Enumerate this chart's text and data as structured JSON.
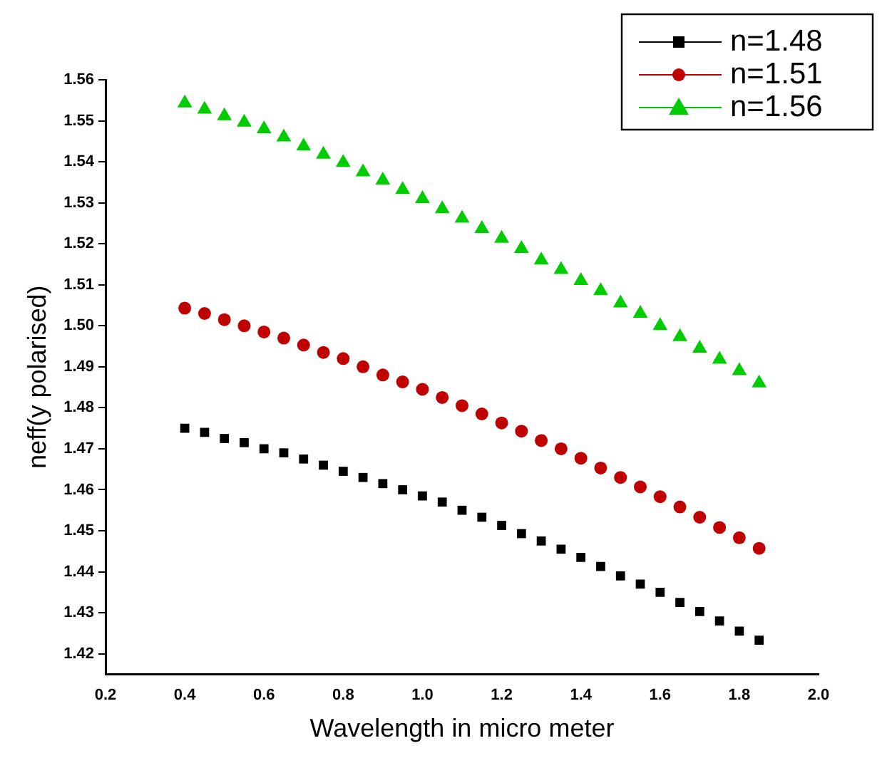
{
  "chart_data": {
    "type": "scatter",
    "xlabel": "Wavelength in micro meter",
    "ylabel": "neff(y polarised)",
    "x": [
      0.4,
      0.45,
      0.5,
      0.55,
      0.6,
      0.65,
      0.7,
      0.75,
      0.8,
      0.85,
      0.9,
      0.95,
      1.0,
      1.05,
      1.1,
      1.15,
      1.2,
      1.25,
      1.3,
      1.35,
      1.4,
      1.45,
      1.5,
      1.55,
      1.6,
      1.65,
      1.7,
      1.75,
      1.8,
      1.85
    ],
    "series": [
      {
        "name": "n=1.48",
        "color": "#000000",
        "marker": "square",
        "values": [
          1.475,
          1.474,
          1.4725,
          1.4715,
          1.47,
          1.469,
          1.4675,
          1.466,
          1.4645,
          1.463,
          1.4615,
          1.46,
          1.4585,
          1.457,
          1.455,
          1.4533,
          1.4513,
          1.4493,
          1.4475,
          1.4455,
          1.4435,
          1.4413,
          1.439,
          1.437,
          1.435,
          1.4325,
          1.4303,
          1.428,
          1.4255,
          1.4233
        ]
      },
      {
        "name": "n=1.51",
        "color": "#c00000",
        "marker": "circle",
        "values": [
          1.5043,
          1.503,
          1.5015,
          1.5,
          1.4985,
          1.497,
          1.4953,
          1.4935,
          1.492,
          1.49,
          1.488,
          1.4863,
          1.4845,
          1.4825,
          1.4805,
          1.4785,
          1.4763,
          1.4743,
          1.472,
          1.47,
          1.4677,
          1.4653,
          1.463,
          1.4607,
          1.4583,
          1.4558,
          1.4533,
          1.4508,
          1.4483,
          1.4457
        ]
      },
      {
        "name": "n=1.56",
        "color": "#00cc00",
        "marker": "triangle",
        "values": [
          1.5543,
          1.5528,
          1.5512,
          1.5496,
          1.548,
          1.546,
          1.5438,
          1.5418,
          1.5398,
          1.5375,
          1.5355,
          1.5332,
          1.531,
          1.5285,
          1.5262,
          1.5237,
          1.5213,
          1.5188,
          1.516,
          1.5137,
          1.511,
          1.5085,
          1.5055,
          1.503,
          1.5,
          1.4973,
          1.4945,
          1.4918,
          1.489,
          1.486
        ]
      }
    ],
    "xlim": [
      0.2,
      2.0
    ],
    "xticks": [
      {
        "value": 0.2,
        "label": "0.2"
      },
      {
        "value": 0.4,
        "label": "0.4"
      },
      {
        "value": 0.6,
        "label": "0.6"
      },
      {
        "value": 0.8,
        "label": "0.8"
      },
      {
        "value": 1.0,
        "label": "1.0"
      },
      {
        "value": 1.2,
        "label": "1.2"
      },
      {
        "value": 1.4,
        "label": "1.4"
      },
      {
        "value": 1.6,
        "label": "1.6"
      },
      {
        "value": 1.8,
        "label": "1.8"
      },
      {
        "value": 2.0,
        "label": "2.0"
      }
    ],
    "ylim": [
      1.415,
      1.56
    ],
    "yticks": [
      1.42,
      1.43,
      1.44,
      1.45,
      1.46,
      1.47,
      1.48,
      1.49,
      {
        "value": 1.5,
        "label": "1.50"
      },
      1.51,
      1.52,
      1.53,
      1.54,
      1.55,
      1.56
    ],
    "grid": false,
    "legend": "top right"
  }
}
